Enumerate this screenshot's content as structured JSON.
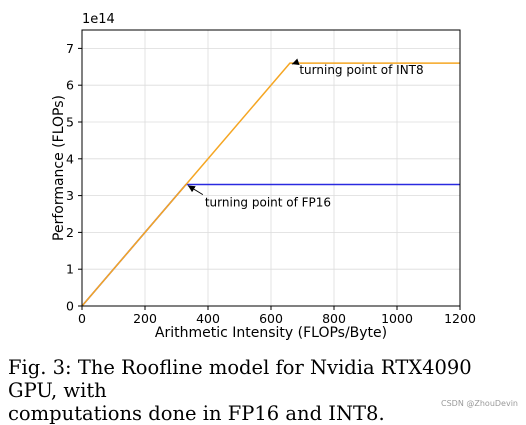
{
  "chart_data": {
    "type": "line",
    "xlabel": "Arithmetic Intensity (FLOPs/Byte)",
    "ylabel": "Performance (FLOPs)",
    "y_offset_label": "1e14",
    "xlim": [
      0,
      1200
    ],
    "ylim": [
      0,
      7.5
    ],
    "xticks": [
      0,
      200,
      400,
      600,
      800,
      1000,
      1200
    ],
    "yticks": [
      0,
      1,
      2,
      3,
      4,
      5,
      6,
      7
    ],
    "grid": true,
    "series": [
      {
        "color": "#2a2ae0",
        "x": [
          0,
          330,
          1200
        ],
        "y": [
          0,
          3.3,
          3.3
        ]
      },
      {
        "color": "#f5a623",
        "x": [
          0,
          660,
          1200
        ],
        "y": [
          0,
          6.6,
          6.6
        ]
      }
    ],
    "annotations": [
      {
        "text": "turning point of INT8",
        "x": 660,
        "y": 6.6,
        "text_x": 690,
        "text_y": 6.3
      },
      {
        "text": "turning point of FP16",
        "x": 330,
        "y": 3.3,
        "text_x": 390,
        "text_y": 2.7
      }
    ]
  },
  "caption": {
    "line1": "Fig. 3: The Roofline model for Nvidia RTX4090 GPU, with",
    "line2": "computations done in FP16 and INT8."
  },
  "watermark": "CSDN @ZhouDevin"
}
